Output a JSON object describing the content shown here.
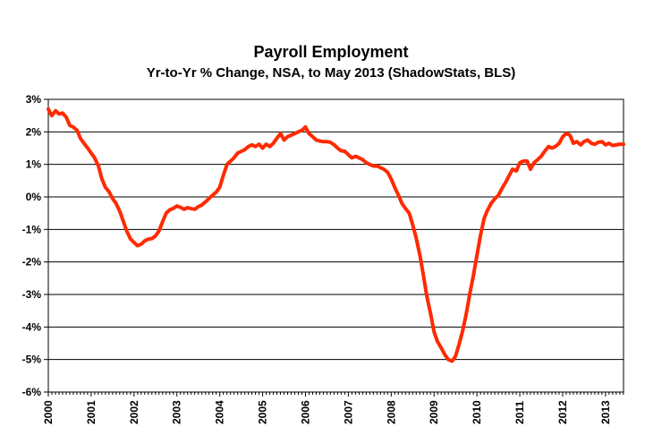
{
  "chart_data": {
    "type": "line",
    "title": "Payroll Employment",
    "subtitle": "Yr-to-Yr % Change, NSA, to May 2013 (ShadowStats, BLS)",
    "xlabel": "",
    "ylabel": "",
    "xlim": [
      2000.0,
      2013.42
    ],
    "ylim": [
      -6,
      3
    ],
    "y_ticks": [
      3,
      2,
      1,
      0,
      -1,
      -2,
      -3,
      -4,
      -5,
      -6
    ],
    "y_tick_labels": [
      "3%",
      "2%",
      "1%",
      "0%",
      "-1%",
      "-2%",
      "-3%",
      "-4%",
      "-5%",
      "-6%"
    ],
    "x_ticks": [
      2000,
      2001,
      2002,
      2003,
      2004,
      2005,
      2006,
      2007,
      2008,
      2009,
      2010,
      2011,
      2012,
      2013
    ],
    "x_tick_labels": [
      "2000",
      "2001",
      "2002",
      "2003",
      "2004",
      "2005",
      "2006",
      "2007",
      "2008",
      "2009",
      "2010",
      "2011",
      "2012",
      "2013"
    ],
    "grid": true,
    "line_color": "#ff2a00",
    "series": [
      {
        "points": [
          [
            2000.0,
            2.7
          ],
          [
            2000.08,
            2.5
          ],
          [
            2000.17,
            2.65
          ],
          [
            2000.25,
            2.55
          ],
          [
            2000.33,
            2.58
          ],
          [
            2000.42,
            2.45
          ],
          [
            2000.5,
            2.2
          ],
          [
            2000.58,
            2.15
          ],
          [
            2000.67,
            2.05
          ],
          [
            2000.75,
            1.8
          ],
          [
            2000.83,
            1.65
          ],
          [
            2000.92,
            1.5
          ],
          [
            2001.0,
            1.35
          ],
          [
            2001.08,
            1.2
          ],
          [
            2001.17,
            0.95
          ],
          [
            2001.25,
            0.55
          ],
          [
            2001.33,
            0.3
          ],
          [
            2001.42,
            0.15
          ],
          [
            2001.5,
            -0.05
          ],
          [
            2001.58,
            -0.2
          ],
          [
            2001.67,
            -0.45
          ],
          [
            2001.75,
            -0.75
          ],
          [
            2001.83,
            -1.05
          ],
          [
            2001.92,
            -1.3
          ],
          [
            2002.0,
            -1.4
          ],
          [
            2002.08,
            -1.5
          ],
          [
            2002.17,
            -1.45
          ],
          [
            2002.25,
            -1.35
          ],
          [
            2002.33,
            -1.3
          ],
          [
            2002.42,
            -1.28
          ],
          [
            2002.5,
            -1.2
          ],
          [
            2002.58,
            -1.05
          ],
          [
            2002.67,
            -0.75
          ],
          [
            2002.75,
            -0.5
          ],
          [
            2002.83,
            -0.4
          ],
          [
            2002.92,
            -0.35
          ],
          [
            2003.0,
            -0.28
          ],
          [
            2003.08,
            -0.32
          ],
          [
            2003.17,
            -0.38
          ],
          [
            2003.25,
            -0.33
          ],
          [
            2003.33,
            -0.36
          ],
          [
            2003.42,
            -0.38
          ],
          [
            2003.5,
            -0.3
          ],
          [
            2003.58,
            -0.25
          ],
          [
            2003.67,
            -0.15
          ],
          [
            2003.75,
            -0.05
          ],
          [
            2003.83,
            0.05
          ],
          [
            2003.92,
            0.15
          ],
          [
            2004.0,
            0.3
          ],
          [
            2004.08,
            0.65
          ],
          [
            2004.17,
            1.0
          ],
          [
            2004.25,
            1.1
          ],
          [
            2004.33,
            1.2
          ],
          [
            2004.42,
            1.35
          ],
          [
            2004.5,
            1.4
          ],
          [
            2004.58,
            1.45
          ],
          [
            2004.67,
            1.55
          ],
          [
            2004.75,
            1.6
          ],
          [
            2004.83,
            1.55
          ],
          [
            2004.92,
            1.62
          ],
          [
            2005.0,
            1.5
          ],
          [
            2005.08,
            1.62
          ],
          [
            2005.17,
            1.55
          ],
          [
            2005.25,
            1.65
          ],
          [
            2005.33,
            1.8
          ],
          [
            2005.42,
            1.95
          ],
          [
            2005.5,
            1.75
          ],
          [
            2005.58,
            1.85
          ],
          [
            2005.67,
            1.9
          ],
          [
            2005.75,
            1.95
          ],
          [
            2005.83,
            2.0
          ],
          [
            2005.92,
            2.05
          ],
          [
            2006.0,
            2.15
          ],
          [
            2006.08,
            1.95
          ],
          [
            2006.17,
            1.85
          ],
          [
            2006.25,
            1.75
          ],
          [
            2006.33,
            1.72
          ],
          [
            2006.42,
            1.7
          ],
          [
            2006.5,
            1.7
          ],
          [
            2006.58,
            1.68
          ],
          [
            2006.67,
            1.6
          ],
          [
            2006.75,
            1.5
          ],
          [
            2006.83,
            1.42
          ],
          [
            2006.92,
            1.4
          ],
          [
            2007.0,
            1.3
          ],
          [
            2007.08,
            1.2
          ],
          [
            2007.17,
            1.25
          ],
          [
            2007.25,
            1.2
          ],
          [
            2007.33,
            1.15
          ],
          [
            2007.42,
            1.05
          ],
          [
            2007.5,
            1.0
          ],
          [
            2007.58,
            0.95
          ],
          [
            2007.67,
            0.95
          ],
          [
            2007.75,
            0.9
          ],
          [
            2007.83,
            0.85
          ],
          [
            2007.92,
            0.75
          ],
          [
            2008.0,
            0.55
          ],
          [
            2008.08,
            0.3
          ],
          [
            2008.17,
            0.05
          ],
          [
            2008.25,
            -0.2
          ],
          [
            2008.33,
            -0.35
          ],
          [
            2008.42,
            -0.5
          ],
          [
            2008.5,
            -0.85
          ],
          [
            2008.58,
            -1.25
          ],
          [
            2008.67,
            -1.8
          ],
          [
            2008.75,
            -2.4
          ],
          [
            2008.83,
            -3.05
          ],
          [
            2008.92,
            -3.6
          ],
          [
            2009.0,
            -4.15
          ],
          [
            2009.08,
            -4.45
          ],
          [
            2009.17,
            -4.65
          ],
          [
            2009.25,
            -4.85
          ],
          [
            2009.33,
            -5.0
          ],
          [
            2009.42,
            -5.05
          ],
          [
            2009.5,
            -4.9
          ],
          [
            2009.58,
            -4.55
          ],
          [
            2009.67,
            -4.1
          ],
          [
            2009.75,
            -3.6
          ],
          [
            2009.83,
            -3.0
          ],
          [
            2009.92,
            -2.4
          ],
          [
            2010.0,
            -1.8
          ],
          [
            2010.08,
            -1.2
          ],
          [
            2010.17,
            -0.65
          ],
          [
            2010.25,
            -0.4
          ],
          [
            2010.33,
            -0.2
          ],
          [
            2010.42,
            -0.05
          ],
          [
            2010.5,
            0.05
          ],
          [
            2010.58,
            0.25
          ],
          [
            2010.67,
            0.45
          ],
          [
            2010.75,
            0.65
          ],
          [
            2010.83,
            0.85
          ],
          [
            2010.92,
            0.8
          ],
          [
            2011.0,
            1.05
          ],
          [
            2011.08,
            1.1
          ],
          [
            2011.17,
            1.1
          ],
          [
            2011.25,
            0.85
          ],
          [
            2011.33,
            1.05
          ],
          [
            2011.42,
            1.15
          ],
          [
            2011.5,
            1.25
          ],
          [
            2011.58,
            1.4
          ],
          [
            2011.67,
            1.55
          ],
          [
            2011.75,
            1.5
          ],
          [
            2011.83,
            1.55
          ],
          [
            2011.92,
            1.65
          ],
          [
            2012.0,
            1.85
          ],
          [
            2012.08,
            1.95
          ],
          [
            2012.17,
            1.9
          ],
          [
            2012.25,
            1.65
          ],
          [
            2012.33,
            1.7
          ],
          [
            2012.42,
            1.6
          ],
          [
            2012.5,
            1.7
          ],
          [
            2012.58,
            1.75
          ],
          [
            2012.67,
            1.65
          ],
          [
            2012.75,
            1.62
          ],
          [
            2012.83,
            1.68
          ],
          [
            2012.92,
            1.7
          ],
          [
            2013.0,
            1.6
          ],
          [
            2013.08,
            1.65
          ],
          [
            2013.17,
            1.58
          ],
          [
            2013.25,
            1.6
          ],
          [
            2013.33,
            1.62
          ],
          [
            2013.42,
            1.62
          ]
        ]
      }
    ]
  }
}
